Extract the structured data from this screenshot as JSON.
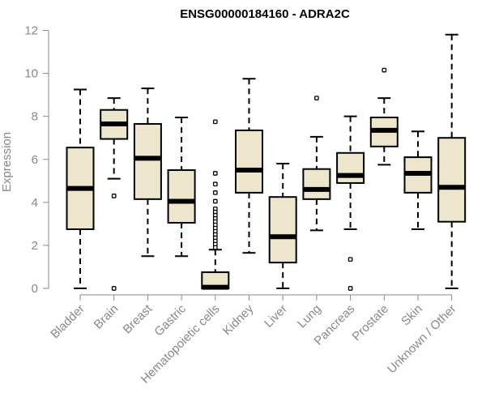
{
  "chart_data": {
    "type": "boxplot",
    "title": "ENSG00000184160 - ADRA2C",
    "ylabel": "Expression",
    "xlabel": "",
    "ylim": [
      0,
      12
    ],
    "yticks": [
      0,
      2,
      4,
      6,
      8,
      10,
      12
    ],
    "grid": false,
    "colors": {
      "box_fill": "#ede6cc",
      "stroke": "#000000",
      "axis": "#888888"
    },
    "categories": [
      "Bladder",
      "Brain",
      "Breast",
      "Gastric",
      "Hematopoietic cells",
      "Kidney",
      "Liver",
      "Lung",
      "Pancreas",
      "Prostate",
      "Skin",
      "Unknown / Other"
    ],
    "boxes": [
      {
        "min": 0.0,
        "q1": 2.75,
        "median": 4.65,
        "q3": 6.55,
        "max": 9.25,
        "outliers": []
      },
      {
        "min": 5.1,
        "q1": 6.95,
        "median": 7.65,
        "q3": 8.3,
        "max": 8.85,
        "outliers": [
          4.3,
          0.0
        ]
      },
      {
        "min": 1.5,
        "q1": 4.15,
        "median": 6.05,
        "q3": 7.65,
        "max": 9.3,
        "outliers": []
      },
      {
        "min": 1.5,
        "q1": 3.05,
        "median": 4.05,
        "q3": 5.5,
        "max": 7.95,
        "outliers": []
      },
      {
        "min": 0.0,
        "q1": 0.0,
        "median": 0.05,
        "q3": 0.75,
        "max": 1.8,
        "outliers": [
          7.75,
          5.35,
          4.85,
          4.45,
          4.05,
          3.7,
          3.55,
          3.4,
          3.25,
          3.1,
          2.95,
          2.8,
          2.65,
          2.5,
          2.35,
          2.2,
          2.05,
          1.9
        ]
      },
      {
        "min": 1.65,
        "q1": 4.45,
        "median": 5.5,
        "q3": 7.35,
        "max": 9.75,
        "outliers": []
      },
      {
        "min": 0.0,
        "q1": 1.2,
        "median": 2.4,
        "q3": 4.25,
        "max": 5.8,
        "outliers": []
      },
      {
        "min": 2.7,
        "q1": 4.15,
        "median": 4.6,
        "q3": 5.55,
        "max": 7.05,
        "outliers": [
          8.85
        ]
      },
      {
        "min": 2.75,
        "q1": 4.9,
        "median": 5.25,
        "q3": 6.3,
        "max": 8.0,
        "outliers": [
          1.35,
          0.0
        ]
      },
      {
        "min": 5.75,
        "q1": 6.6,
        "median": 7.35,
        "q3": 7.95,
        "max": 8.85,
        "outliers": [
          10.15
        ]
      },
      {
        "min": 2.75,
        "q1": 4.45,
        "median": 5.35,
        "q3": 6.1,
        "max": 7.3,
        "outliers": []
      },
      {
        "min": 0.0,
        "q1": 3.1,
        "median": 4.7,
        "q3": 7.0,
        "max": 11.8,
        "outliers": []
      }
    ]
  }
}
